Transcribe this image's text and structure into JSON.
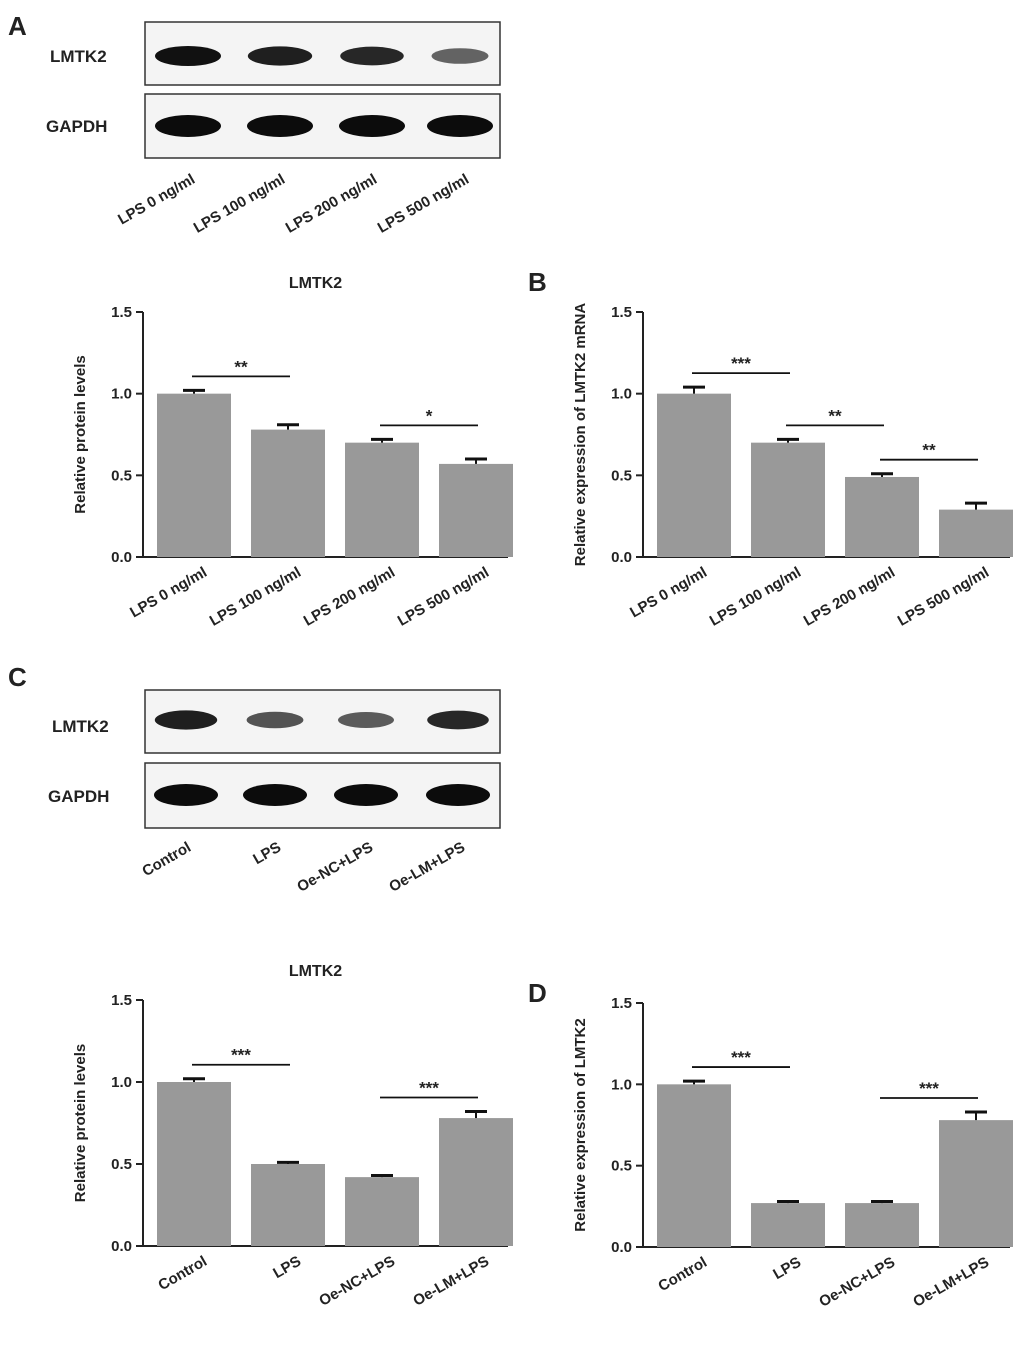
{
  "panels": {
    "A": "A",
    "B": "B",
    "C": "C",
    "D": "D"
  },
  "blots": [
    {
      "rows": [
        "LMTK2",
        "GAPDH"
      ],
      "lanes": [
        "LPS 0 ng/ml",
        "LPS 100 ng/ml",
        "LPS 200 ng/ml",
        "LPS 500 ng/ml"
      ],
      "band_intensity": {
        "LMTK2": [
          1.0,
          0.9,
          0.85,
          0.45
        ],
        "GAPDH": [
          1.0,
          1.0,
          1.0,
          1.0
        ]
      }
    },
    {
      "rows": [
        "LMTK2",
        "GAPDH"
      ],
      "lanes": [
        "Control",
        "LPS",
        "Oe-NC+LPS",
        "Oe-LM+LPS"
      ],
      "band_intensity": {
        "LMTK2": [
          0.9,
          0.55,
          0.5,
          0.85
        ],
        "GAPDH": [
          1.0,
          1.0,
          1.0,
          1.0
        ]
      }
    }
  ],
  "chart_data": [
    {
      "type": "bar",
      "title": "LMTK2",
      "ylabel": "Relative protein levels",
      "categories": [
        "LPS 0 ng/ml",
        "LPS 100 ng/ml",
        "LPS 200 ng/ml",
        "LPS 500 ng/ml"
      ],
      "values": [
        1.0,
        0.78,
        0.7,
        0.57
      ],
      "errors": [
        0.02,
        0.03,
        0.02,
        0.03
      ],
      "ylim": [
        0,
        1.5
      ],
      "yticks": [
        "0.0",
        "0.5",
        "1.0",
        "1.5"
      ],
      "bar_color": "#999999",
      "significance": [
        {
          "from": 0,
          "to": 1,
          "label": "**"
        },
        {
          "from": 2,
          "to": 3,
          "label": "*"
        }
      ]
    },
    {
      "type": "bar",
      "title": "",
      "ylabel": "Relative expression of LMTK2 mRNA",
      "categories": [
        "LPS 0 ng/ml",
        "LPS 100 ng/ml",
        "LPS 200 ng/ml",
        "LPS 500 ng/ml"
      ],
      "values": [
        1.0,
        0.7,
        0.49,
        0.29
      ],
      "errors": [
        0.04,
        0.02,
        0.02,
        0.04
      ],
      "ylim": [
        0,
        1.5
      ],
      "yticks": [
        "0.0",
        "0.5",
        "1.0",
        "1.5"
      ],
      "bar_color": "#999999",
      "significance": [
        {
          "from": 0,
          "to": 1,
          "label": "***"
        },
        {
          "from": 1,
          "to": 2,
          "label": "**"
        },
        {
          "from": 2,
          "to": 3,
          "label": "**"
        }
      ]
    },
    {
      "type": "bar",
      "title": "LMTK2",
      "ylabel": "Relative protein levels",
      "categories": [
        "Control",
        "LPS",
        "Oe-NC+LPS",
        "Oe-LM+LPS"
      ],
      "values": [
        1.0,
        0.5,
        0.42,
        0.78
      ],
      "errors": [
        0.02,
        0.01,
        0.01,
        0.04
      ],
      "ylim": [
        0,
        1.5
      ],
      "yticks": [
        "0.0",
        "0.5",
        "1.0",
        "1.5"
      ],
      "bar_color": "#999999",
      "significance": [
        {
          "from": 0,
          "to": 1,
          "label": "***"
        },
        {
          "from": 2,
          "to": 3,
          "label": "***"
        }
      ]
    },
    {
      "type": "bar",
      "title": "",
      "ylabel": "Relative expression of LMTK2",
      "categories": [
        "Control",
        "LPS",
        "Oe-NC+LPS",
        "Oe-LM+LPS"
      ],
      "values": [
        1.0,
        0.27,
        0.27,
        0.78
      ],
      "errors": [
        0.02,
        0.01,
        0.01,
        0.05
      ],
      "ylim": [
        0,
        1.5
      ],
      "yticks": [
        "0.0",
        "0.5",
        "1.0",
        "1.5"
      ],
      "bar_color": "#999999",
      "significance": [
        {
          "from": 0,
          "to": 1,
          "label": "***"
        },
        {
          "from": 2,
          "to": 3,
          "label": "***"
        }
      ]
    }
  ]
}
